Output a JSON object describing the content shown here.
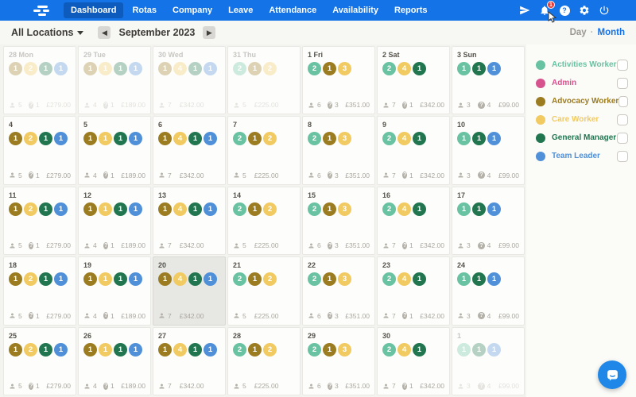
{
  "nav": {
    "tabs": [
      "Dashboard",
      "Rotas",
      "Company",
      "Leave",
      "Attendance",
      "Availability",
      "Reports"
    ],
    "active_tab": "Dashboard",
    "notification_count": "1"
  },
  "toolbar": {
    "location_selector": "All Locations",
    "prev_arrow": "◀",
    "next_arrow": "▶",
    "period_label": "September 2023",
    "view_day": "Day",
    "view_separator": "·",
    "view_month": "Month"
  },
  "roles": [
    {
      "key": "activities",
      "name": "Activities Worker",
      "color": "#69c3a2"
    },
    {
      "key": "admin",
      "name": "Admin",
      "color": "#d6538e"
    },
    {
      "key": "advocacy",
      "name": "Advocacy Worker",
      "color": "#9c7c21"
    },
    {
      "key": "care",
      "name": "Care Worker",
      "color": "#f1ca62"
    },
    {
      "key": "general",
      "name": "General Manager",
      "color": "#21764f"
    },
    {
      "key": "team",
      "name": "Team Leader",
      "color": "#4f90d8"
    }
  ],
  "day_patterns": {
    "mon": {
      "badges": [
        [
          "advocacy",
          "1"
        ],
        [
          "care",
          "2"
        ],
        [
          "general",
          "1"
        ],
        [
          "team",
          "1"
        ]
      ],
      "staff": "5",
      "queries": "1",
      "cost": "£279.00"
    },
    "tue": {
      "badges": [
        [
          "advocacy",
          "1"
        ],
        [
          "care",
          "1"
        ],
        [
          "general",
          "1"
        ],
        [
          "team",
          "1"
        ]
      ],
      "staff": "4",
      "queries": "1",
      "cost": "£189.00"
    },
    "wed": {
      "badges": [
        [
          "advocacy",
          "1"
        ],
        [
          "care",
          "4"
        ],
        [
          "general",
          "1"
        ],
        [
          "team",
          "1"
        ]
      ],
      "staff": "7",
      "queries": null,
      "cost": "£342.00"
    },
    "thu": {
      "badges": [
        [
          "activities",
          "2"
        ],
        [
          "advocacy",
          "1"
        ],
        [
          "care",
          "2"
        ]
      ],
      "staff": "5",
      "queries": null,
      "cost": "£225.00"
    },
    "fri": {
      "badges": [
        [
          "activities",
          "2"
        ],
        [
          "advocacy",
          "1"
        ],
        [
          "care",
          "3"
        ]
      ],
      "staff": "6",
      "queries": "3",
      "cost": "£351.00"
    },
    "sat": {
      "badges": [
        [
          "activities",
          "2"
        ],
        [
          "care",
          "4"
        ],
        [
          "general",
          "1"
        ]
      ],
      "staff": "7",
      "queries": "1",
      "cost": "£342.00"
    },
    "sun": {
      "badges": [
        [
          "activities",
          "1"
        ],
        [
          "general",
          "1"
        ],
        [
          "team",
          "1"
        ]
      ],
      "staff": "3",
      "queries": "4",
      "cost": "£99.00"
    }
  },
  "calendar": {
    "weeks": [
      [
        {
          "label": "28 Mon",
          "pattern": "mon",
          "muted": true
        },
        {
          "label": "29 Tue",
          "pattern": "tue",
          "muted": true
        },
        {
          "label": "30 Wed",
          "pattern": "wed",
          "muted": true
        },
        {
          "label": "31 Thu",
          "pattern": "thu",
          "muted": true
        },
        {
          "label": "1 Fri",
          "pattern": "fri",
          "muted": false
        },
        {
          "label": "2 Sat",
          "pattern": "sat",
          "muted": false
        },
        {
          "label": "3 Sun",
          "pattern": "sun",
          "muted": false
        }
      ],
      [
        {
          "label": "4",
          "pattern": "mon",
          "muted": false
        },
        {
          "label": "5",
          "pattern": "tue",
          "muted": false
        },
        {
          "label": "6",
          "pattern": "wed",
          "muted": false
        },
        {
          "label": "7",
          "pattern": "thu",
          "muted": false
        },
        {
          "label": "8",
          "pattern": "fri",
          "muted": false
        },
        {
          "label": "9",
          "pattern": "sat",
          "muted": false
        },
        {
          "label": "10",
          "pattern": "sun",
          "muted": false
        }
      ],
      [
        {
          "label": "11",
          "pattern": "mon",
          "muted": false
        },
        {
          "label": "12",
          "pattern": "tue",
          "muted": false
        },
        {
          "label": "13",
          "pattern": "wed",
          "muted": false
        },
        {
          "label": "14",
          "pattern": "thu",
          "muted": false
        },
        {
          "label": "15",
          "pattern": "fri",
          "muted": false
        },
        {
          "label": "16",
          "pattern": "sat",
          "muted": false
        },
        {
          "label": "17",
          "pattern": "sun",
          "muted": false
        }
      ],
      [
        {
          "label": "18",
          "pattern": "mon",
          "muted": false
        },
        {
          "label": "19",
          "pattern": "tue",
          "muted": false
        },
        {
          "label": "20",
          "pattern": "wed",
          "muted": false,
          "selected": true
        },
        {
          "label": "21",
          "pattern": "thu",
          "muted": false
        },
        {
          "label": "22",
          "pattern": "fri",
          "muted": false
        },
        {
          "label": "23",
          "pattern": "sat",
          "muted": false
        },
        {
          "label": "24",
          "pattern": "sun",
          "muted": false
        }
      ],
      [
        {
          "label": "25",
          "pattern": "mon",
          "muted": false
        },
        {
          "label": "26",
          "pattern": "tue",
          "muted": false
        },
        {
          "label": "27",
          "pattern": "wed",
          "muted": false
        },
        {
          "label": "28",
          "pattern": "thu",
          "muted": false
        },
        {
          "label": "29",
          "pattern": "fri",
          "muted": false
        },
        {
          "label": "30",
          "pattern": "sat",
          "muted": false
        },
        {
          "label": "1",
          "pattern": "sun",
          "muted": true
        }
      ]
    ]
  }
}
